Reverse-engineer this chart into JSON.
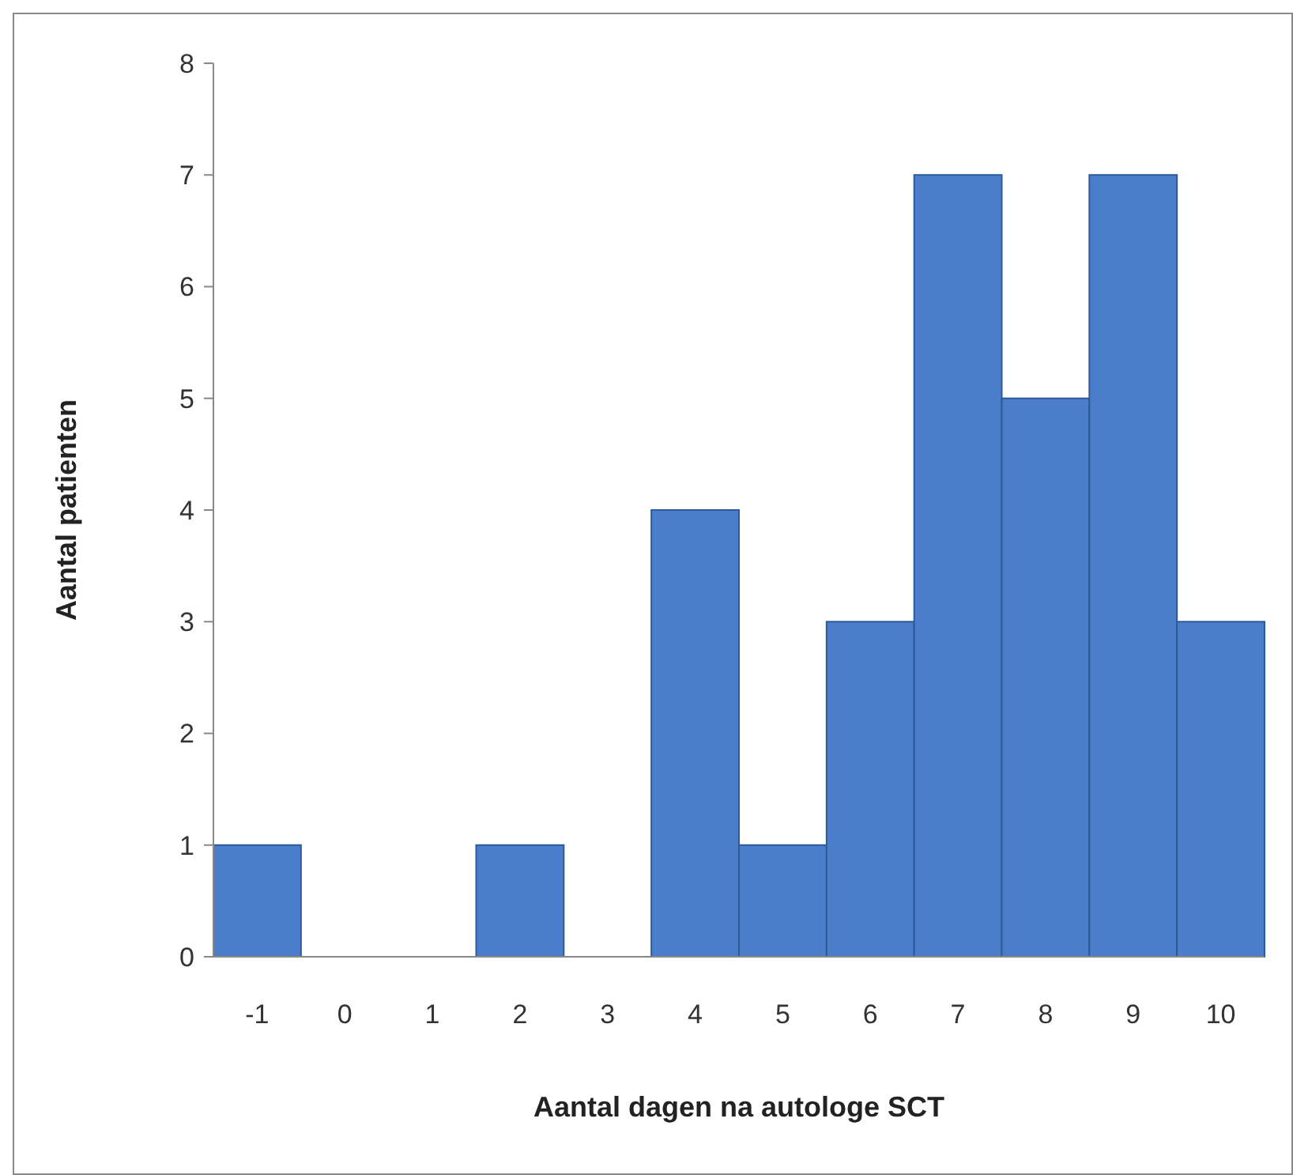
{
  "chart_data": {
    "type": "bar",
    "xlabel": "Aantal dagen na autologe SCT",
    "ylabel": "Aantal patienten",
    "categories": [
      "-1",
      "0",
      "1",
      "2",
      "3",
      "4",
      "5",
      "6",
      "7",
      "8",
      "9",
      "10"
    ],
    "values": [
      1,
      0,
      0,
      1,
      0,
      4,
      1,
      3,
      7,
      5,
      7,
      3
    ],
    "color": "#4a7ecb",
    "ylim": [
      0,
      8
    ],
    "yticks": [
      0,
      1,
      2,
      3,
      4,
      5,
      6,
      7,
      8
    ],
    "grid": false
  }
}
